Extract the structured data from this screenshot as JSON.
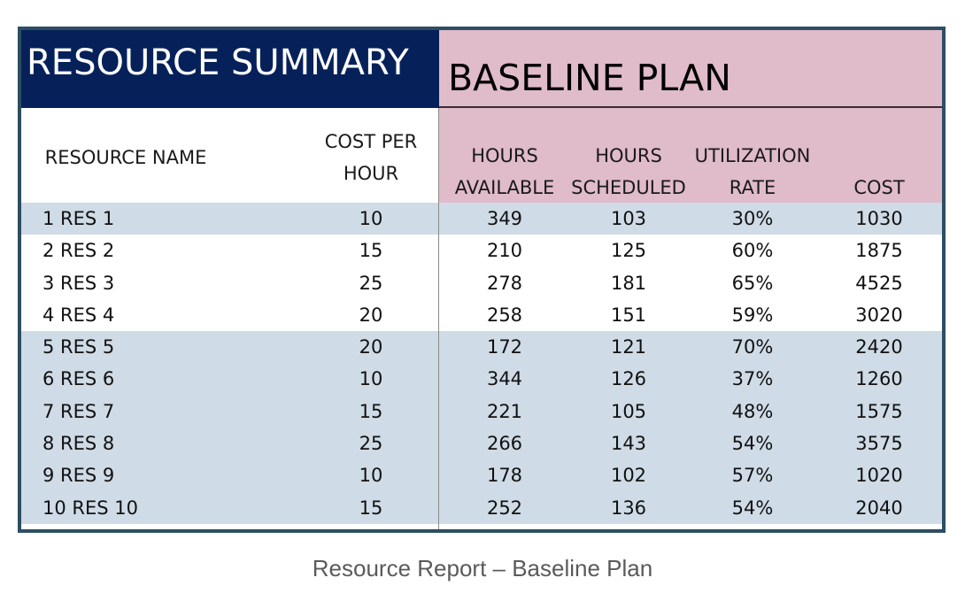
{
  "header": {
    "left_title": "RESOURCE SUMMARY",
    "right_title": "BASELINE PLAN"
  },
  "columns": {
    "resource_name": "RESOURCE NAME",
    "cost_per_hour_line1": "COST PER",
    "cost_per_hour_line2": "HOUR",
    "hours_available_line1": "HOURS",
    "hours_available_line2": "AVAILABLE",
    "hours_scheduled_line1": "HOURS",
    "hours_scheduled_line2": "SCHEDULED",
    "utilization_line1": "UTILIZATION",
    "utilization_line2": "RATE",
    "cost": "COST"
  },
  "rows": [
    {
      "name": "1 RES 1",
      "cost_per_hour": "10",
      "hours_available": "349",
      "hours_scheduled": "103",
      "utilization": "30%",
      "cost": "1030"
    },
    {
      "name": "2 RES 2",
      "cost_per_hour": "15",
      "hours_available": "210",
      "hours_scheduled": "125",
      "utilization": "60%",
      "cost": "1875"
    },
    {
      "name": "3 RES 3",
      "cost_per_hour": "25",
      "hours_available": "278",
      "hours_scheduled": "181",
      "utilization": "65%",
      "cost": "4525"
    },
    {
      "name": "4 RES 4",
      "cost_per_hour": "20",
      "hours_available": "258",
      "hours_scheduled": "151",
      "utilization": "59%",
      "cost": "3020"
    },
    {
      "name": "5 RES 5",
      "cost_per_hour": "20",
      "hours_available": "172",
      "hours_scheduled": "121",
      "utilization": "70%",
      "cost": "2420"
    },
    {
      "name": "6 RES 6",
      "cost_per_hour": "10",
      "hours_available": "344",
      "hours_scheduled": "126",
      "utilization": "37%",
      "cost": "1260"
    },
    {
      "name": "7 RES 7",
      "cost_per_hour": "15",
      "hours_available": "221",
      "hours_scheduled": "105",
      "utilization": "48%",
      "cost": "1575"
    },
    {
      "name": "8 RES 8",
      "cost_per_hour": "25",
      "hours_available": "266",
      "hours_scheduled": "143",
      "utilization": "54%",
      "cost": "3575"
    },
    {
      "name": "9 RES 9",
      "cost_per_hour": "10",
      "hours_available": "178",
      "hours_scheduled": "102",
      "utilization": "57%",
      "cost": "1020"
    },
    {
      "name": "10 RES 10",
      "cost_per_hour": "15",
      "hours_available": "252",
      "hours_scheduled": "136",
      "utilization": "54%",
      "cost": "2040"
    }
  ],
  "caption": "Resource Report – Baseline Plan",
  "colors": {
    "navy_banner": "#06215a",
    "pink_banner": "#e0bbc9",
    "row_shade": "#cfdbe6",
    "frame_border": "#2d4e62"
  }
}
